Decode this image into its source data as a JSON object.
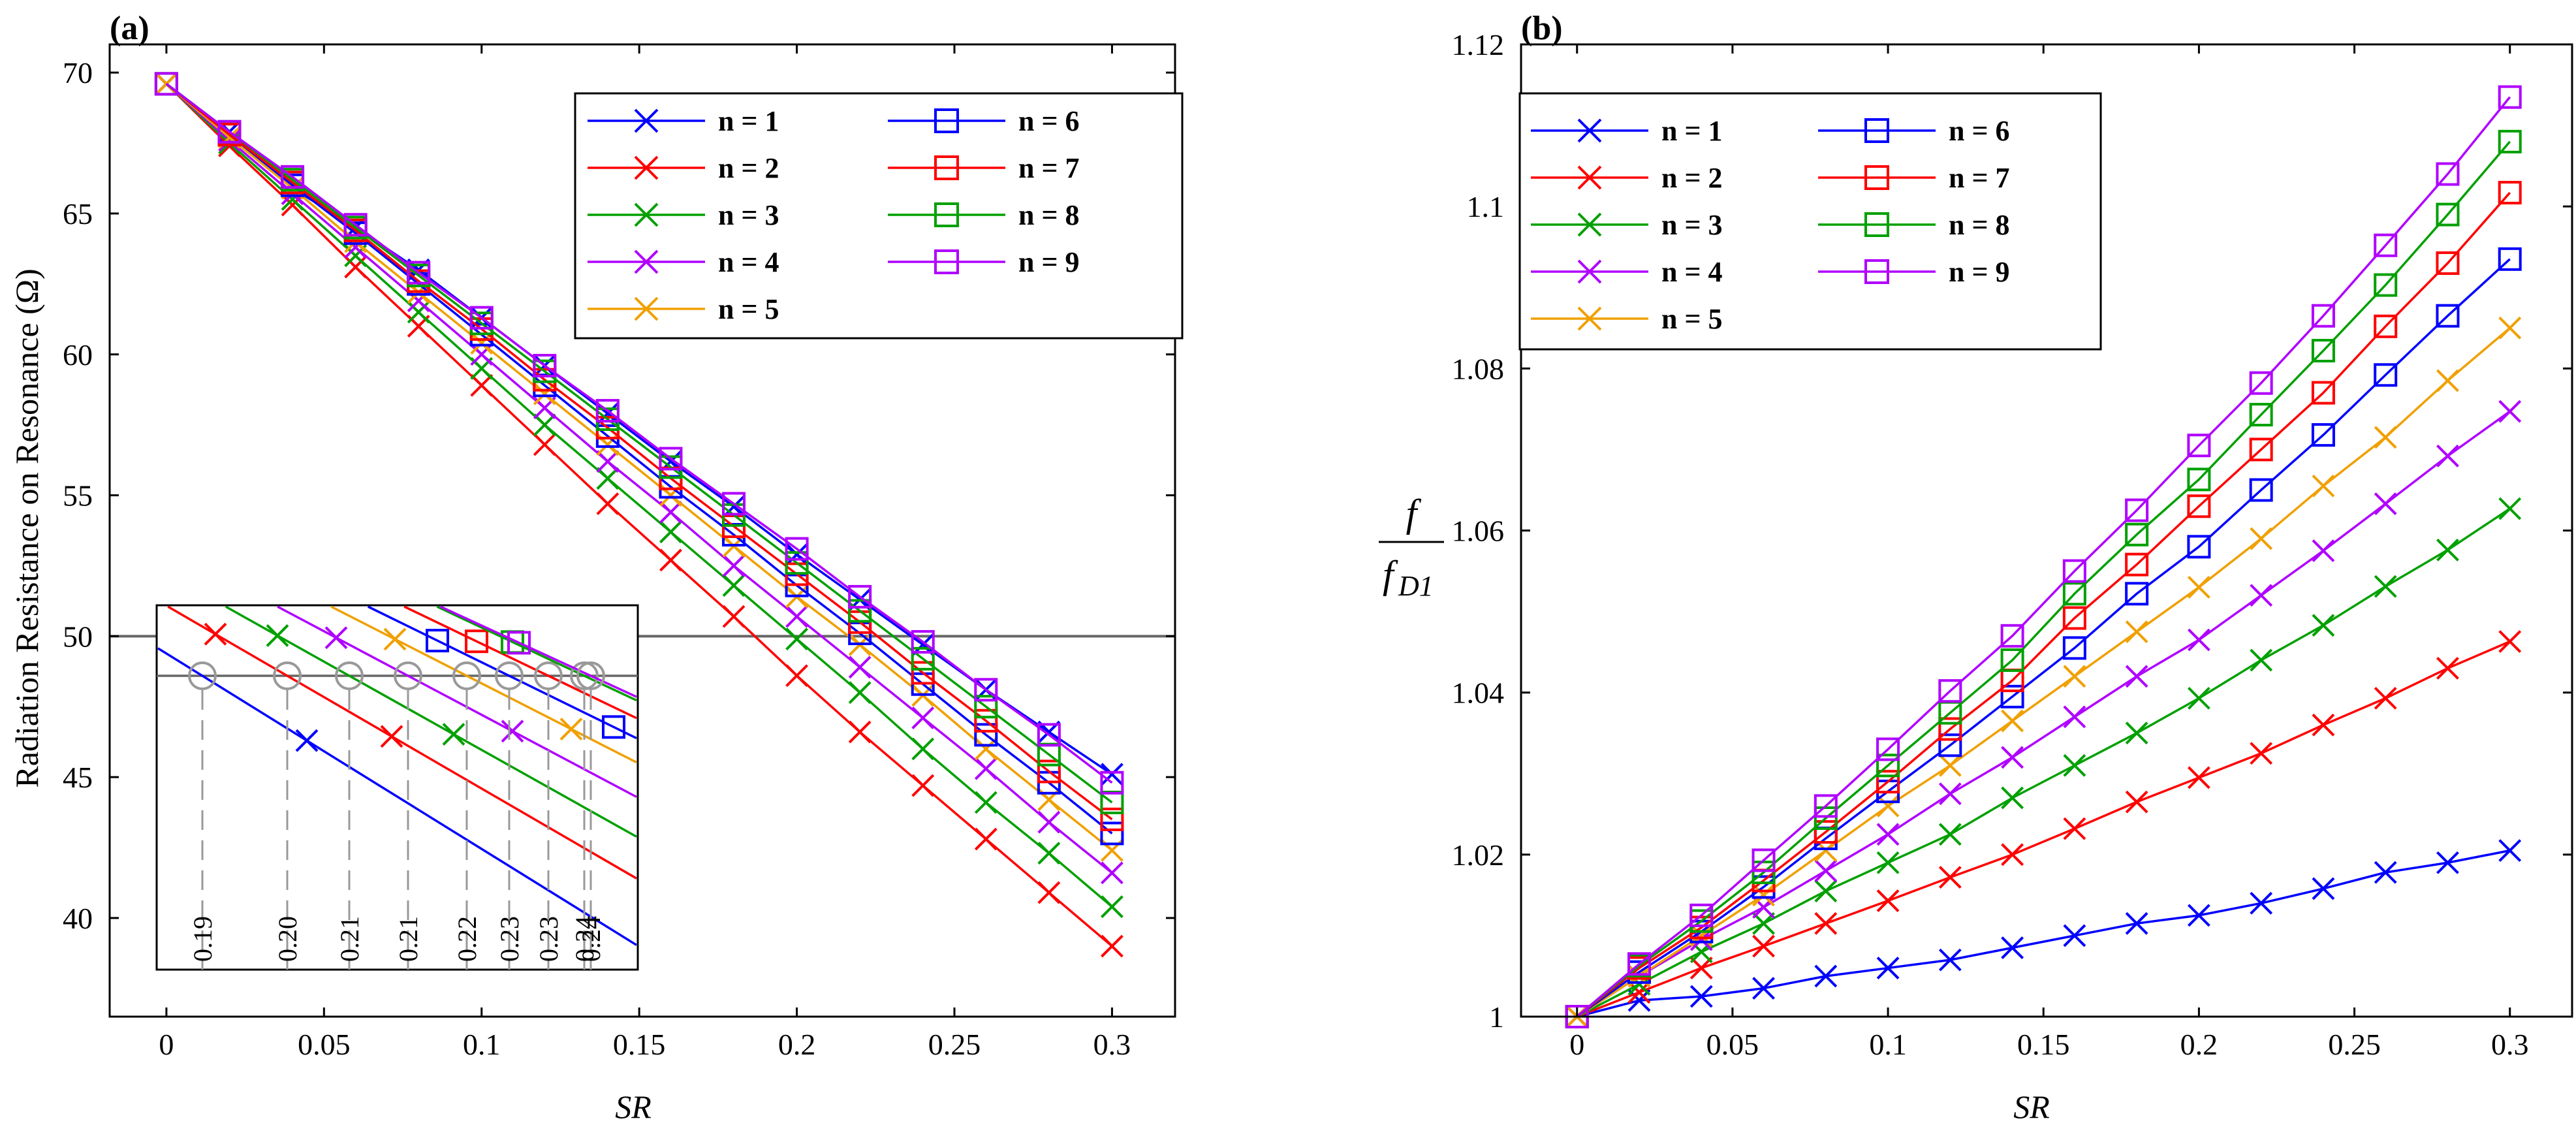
{
  "chart_data": [
    {
      "panel_label": "(a)",
      "type": "line",
      "xlabel": "SR",
      "ylabel": "Radiation Resistance on Resonance (Ω)",
      "xlim": [
        -0.018,
        0.32
      ],
      "ylim": [
        36.5,
        71
      ],
      "xticks": [
        0,
        0.05,
        0.1,
        0.15,
        0.2,
        0.25,
        0.3
      ],
      "xtick_labels": [
        "0",
        "0.05",
        "0.1",
        "0.15",
        "0.2",
        "0.25",
        "0.3"
      ],
      "yticks": [
        40,
        45,
        50,
        55,
        60,
        65,
        70
      ],
      "ytick_labels": [
        "40",
        "45",
        "50",
        "55",
        "60",
        "65",
        "70"
      ],
      "reference_line_y": 50,
      "legend_position": "top-right",
      "x": [
        0,
        0.02,
        0.04,
        0.06,
        0.08,
        0.1,
        0.12,
        0.14,
        0.16,
        0.18,
        0.2,
        0.22,
        0.24,
        0.26,
        0.28,
        0.3
      ],
      "series": [
        {
          "name": "n = 1",
          "color": "#0000ff",
          "marker": "x",
          "values": [
            69.6,
            67.9,
            65.9,
            64.5,
            63.0,
            61.3,
            59.6,
            57.9,
            56.2,
            54.6,
            52.9,
            51.3,
            49.7,
            48.1,
            46.6,
            45.1
          ]
        },
        {
          "name": "n = 2",
          "color": "#ff0000",
          "marker": "x",
          "values": [
            69.6,
            67.4,
            65.3,
            63.1,
            61.0,
            58.9,
            56.8,
            54.7,
            52.7,
            50.7,
            48.6,
            46.6,
            44.7,
            42.8,
            40.9,
            39.0
          ]
        },
        {
          "name": "n = 3",
          "color": "#00a000",
          "marker": "x",
          "values": [
            69.6,
            67.5,
            65.5,
            63.5,
            61.5,
            59.5,
            57.5,
            55.6,
            53.7,
            51.8,
            49.9,
            48.0,
            46.0,
            44.1,
            42.3,
            40.4
          ]
        },
        {
          "name": "n = 4",
          "color": "#b000ff",
          "marker": "x",
          "values": [
            69.6,
            67.6,
            65.7,
            63.8,
            61.9,
            60.0,
            58.1,
            56.2,
            54.4,
            52.5,
            50.7,
            48.9,
            47.1,
            45.3,
            43.4,
            41.6
          ]
        },
        {
          "name": "n = 5",
          "color": "#f0a000",
          "marker": "x",
          "values": [
            69.6,
            67.7,
            65.9,
            64.0,
            62.2,
            60.4,
            58.6,
            56.8,
            55.0,
            53.2,
            51.4,
            49.7,
            47.9,
            46.0,
            44.2,
            42.4
          ]
        },
        {
          "name": "n = 6",
          "color": "#0000ff",
          "marker": "square",
          "values": [
            69.6,
            67.8,
            66.0,
            64.3,
            62.5,
            60.7,
            58.9,
            57.1,
            55.3,
            53.6,
            51.8,
            50.1,
            48.3,
            46.5,
            44.8,
            43.0
          ]
        },
        {
          "name": "n = 7",
          "color": "#ff0000",
          "marker": "square",
          "values": [
            69.6,
            67.8,
            66.1,
            64.4,
            62.6,
            60.9,
            59.1,
            57.4,
            55.6,
            53.9,
            52.2,
            50.5,
            48.7,
            47.0,
            45.2,
            43.5
          ]
        },
        {
          "name": "n = 8",
          "color": "#00a000",
          "marker": "square",
          "values": [
            69.6,
            67.9,
            66.2,
            64.5,
            62.8,
            61.1,
            59.4,
            57.7,
            56.0,
            54.3,
            52.6,
            50.9,
            49.2,
            47.5,
            45.8,
            44.1
          ]
        },
        {
          "name": "n = 9",
          "color": "#b000ff",
          "marker": "square",
          "values": [
            69.6,
            67.9,
            66.3,
            64.6,
            62.9,
            61.3,
            59.6,
            58.0,
            56.3,
            54.7,
            53.1,
            51.4,
            49.8,
            48.1,
            46.5,
            44.8
          ]
        }
      ],
      "inset": {
        "sr_labels": [
          "0.19",
          "0.20",
          "0.21",
          "0.21",
          "0.22",
          "0.23",
          "0.23",
          "0.24",
          "0.24"
        ],
        "marker_color": "#999999"
      }
    },
    {
      "panel_label": "(b)",
      "type": "line",
      "xlabel": "SR",
      "ylabel_num": "f",
      "ylabel_den": "f",
      "ylabel_sub": "D1",
      "xlim": [
        -0.018,
        0.32
      ],
      "ylim": [
        1.0,
        1.12
      ],
      "xticks": [
        0,
        0.05,
        0.1,
        0.15,
        0.2,
        0.25,
        0.3
      ],
      "xtick_labels": [
        "0",
        "0.05",
        "0.1",
        "0.15",
        "0.2",
        "0.25",
        "0.3"
      ],
      "yticks": [
        1.0,
        1.02,
        1.04,
        1.06,
        1.08,
        1.1,
        1.12
      ],
      "ytick_labels": [
        "1",
        "1.02",
        "1.04",
        "1.06",
        "1.08",
        "1.1",
        "1.12"
      ],
      "legend_position": "top-left",
      "x": [
        0,
        0.02,
        0.04,
        0.06,
        0.08,
        0.1,
        0.12,
        0.14,
        0.16,
        0.18,
        0.2,
        0.22,
        0.24,
        0.26,
        0.28,
        0.3
      ],
      "series": [
        {
          "name": "n = 1",
          "color": "#0000ff",
          "marker": "x",
          "values": [
            1.0,
            1.002,
            1.0025,
            1.0035,
            1.005,
            1.006,
            1.007,
            1.0085,
            1.01,
            1.0115,
            1.0125,
            1.014,
            1.0158,
            1.0178,
            1.019,
            1.0205
          ]
        },
        {
          "name": "n = 2",
          "color": "#ff0000",
          "marker": "x",
          "values": [
            1.0,
            1.003,
            1.006,
            1.0087,
            1.0115,
            1.0143,
            1.0172,
            1.02,
            1.0232,
            1.0265,
            1.0295,
            1.0325,
            1.036,
            1.0393,
            1.043,
            1.0463
          ]
        },
        {
          "name": "n = 3",
          "color": "#00a000",
          "marker": "x",
          "values": [
            1.0,
            1.004,
            1.008,
            1.0115,
            1.0155,
            1.019,
            1.0225,
            1.027,
            1.031,
            1.035,
            1.0393,
            1.044,
            1.0483,
            1.0531,
            1.0576,
            1.0627
          ]
        },
        {
          "name": "n = 4",
          "color": "#b000ff",
          "marker": "x",
          "values": [
            1.0,
            1.005,
            1.0095,
            1.0135,
            1.018,
            1.0225,
            1.0275,
            1.032,
            1.037,
            1.042,
            1.0465,
            1.052,
            1.0575,
            1.0633,
            1.0692,
            1.0747
          ]
        },
        {
          "name": "n = 5",
          "color": "#f0a000",
          "marker": "x",
          "values": [
            1.0,
            1.005,
            1.01,
            1.015,
            1.0205,
            1.026,
            1.031,
            1.0365,
            1.042,
            1.0475,
            1.053,
            1.059,
            1.0655,
            1.0715,
            1.0785,
            1.085
          ]
        },
        {
          "name": "n = 6",
          "color": "#0000ff",
          "marker": "square",
          "values": [
            1.0,
            1.0055,
            1.0105,
            1.016,
            1.022,
            1.0278,
            1.0335,
            1.0395,
            1.0455,
            1.0522,
            1.058,
            1.065,
            1.0718,
            1.0792,
            1.0865,
            1.0935
          ]
        },
        {
          "name": "n = 7",
          "color": "#ff0000",
          "marker": "square",
          "values": [
            1.0,
            1.006,
            1.011,
            1.0168,
            1.0228,
            1.029,
            1.0355,
            1.0415,
            1.0492,
            1.0558,
            1.063,
            1.07,
            1.077,
            1.0852,
            1.093,
            1.1017
          ]
        },
        {
          "name": "n = 8",
          "color": "#00a000",
          "marker": "square",
          "values": [
            1.0,
            1.0063,
            1.0118,
            1.0178,
            1.0245,
            1.031,
            1.0375,
            1.044,
            1.0522,
            1.0595,
            1.0663,
            1.0743,
            1.0822,
            1.0903,
            1.099,
            1.108
          ]
        },
        {
          "name": "n = 9",
          "color": "#b000ff",
          "marker": "square",
          "values": [
            1.0,
            1.0065,
            1.0125,
            1.0193,
            1.026,
            1.033,
            1.0402,
            1.047,
            1.055,
            1.0625,
            1.0705,
            1.0782,
            1.0865,
            1.0952,
            1.104,
            1.1135
          ]
        }
      ]
    }
  ]
}
